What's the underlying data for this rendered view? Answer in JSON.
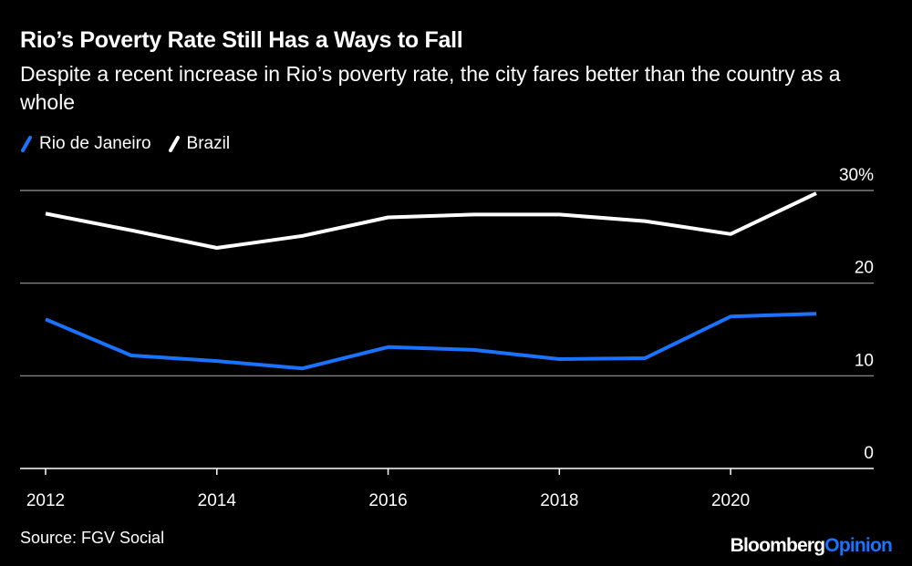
{
  "colors": {
    "background": "#000000",
    "rio": "#1a73ff",
    "brazil": "#ffffff",
    "grid": "#9a9a9a",
    "axis": "#ffffff"
  },
  "chart_data": {
    "type": "line",
    "title": "Rio’s Poverty Rate Still Has a Ways to Fall",
    "subtitle": "Despite a recent increase in Rio’s poverty rate, the city fares better than the country as a whole",
    "xlabel": "",
    "ylabel": "",
    "x": [
      2012,
      2013,
      2014,
      2015,
      2016,
      2017,
      2018,
      2019,
      2020,
      2021
    ],
    "xticks": [
      2012,
      2014,
      2016,
      2018,
      2020
    ],
    "xtick_labels": [
      "2012",
      "2014",
      "2016",
      "2018",
      "2020"
    ],
    "yticks": [
      0,
      10,
      20,
      30
    ],
    "ytick_labels": [
      "0",
      "10",
      "20",
      "30%"
    ],
    "xlim": [
      2012,
      2021.6
    ],
    "ylim": [
      0,
      30
    ],
    "grid": true,
    "legend_position": "top-left",
    "series": [
      {
        "name": "Rio de Janeiro",
        "color": "#1a73ff",
        "values": [
          16.1,
          12.2,
          11.6,
          10.8,
          13.1,
          12.8,
          11.8,
          11.9,
          16.4,
          16.7
        ]
      },
      {
        "name": "Brazil",
        "color": "#ffffff",
        "values": [
          27.5,
          25.7,
          23.8,
          25.1,
          27.1,
          27.4,
          27.4,
          26.7,
          25.3,
          29.7
        ]
      }
    ]
  },
  "footer": {
    "source": "Source: FGV Social",
    "brand_part1": "Bloomberg",
    "brand_part2": "Opinion"
  }
}
